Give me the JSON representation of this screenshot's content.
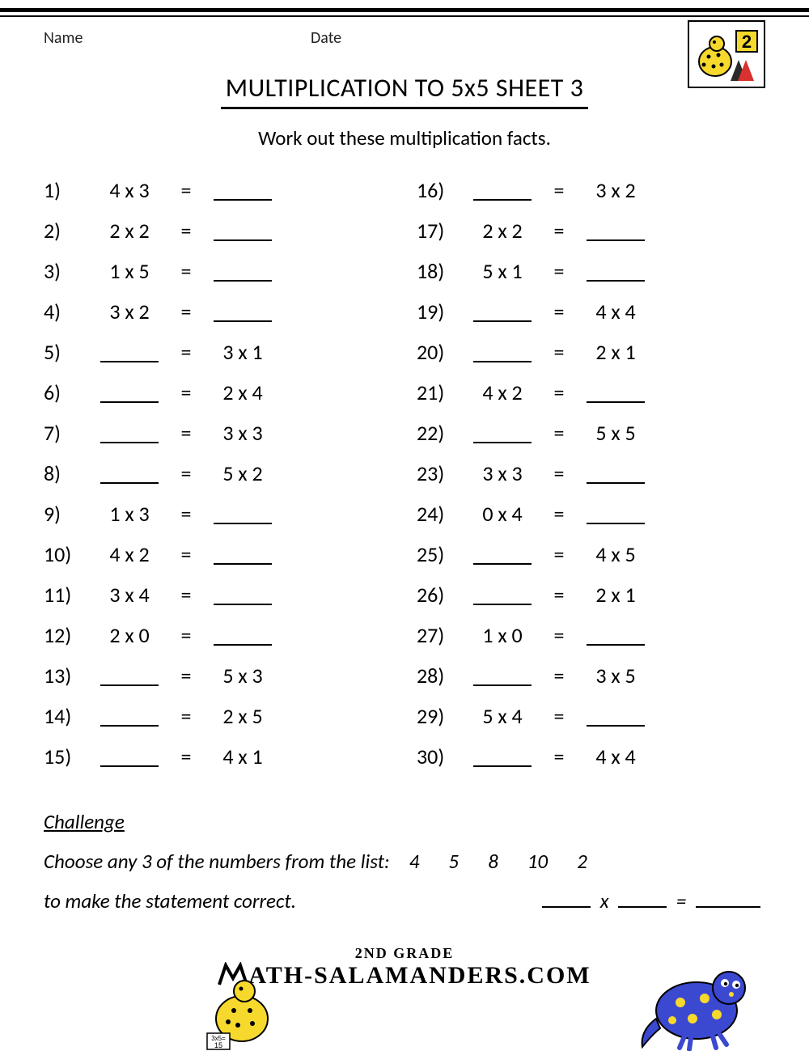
{
  "meta": {
    "name_label": "Name",
    "date_label": "Date"
  },
  "title": "MULTIPLICATION TO 5x5 SHEET 3",
  "instructions": "Work out these multiplication facts.",
  "grade_badge": "2",
  "columns": [
    [
      {
        "n": "1)",
        "left": "4 x 3",
        "right": ""
      },
      {
        "n": "2)",
        "left": "2 x 2",
        "right": ""
      },
      {
        "n": "3)",
        "left": "1 x 5",
        "right": ""
      },
      {
        "n": "4)",
        "left": "3 x 2",
        "right": ""
      },
      {
        "n": "5)",
        "left": "",
        "right": "3 x 1"
      },
      {
        "n": "6)",
        "left": "",
        "right": "2 x 4"
      },
      {
        "n": "7)",
        "left": "",
        "right": "3 x 3"
      },
      {
        "n": "8)",
        "left": "",
        "right": "5 x 2"
      },
      {
        "n": "9)",
        "left": "1 x 3",
        "right": ""
      },
      {
        "n": "10)",
        "left": "4 x 2",
        "right": ""
      },
      {
        "n": "11)",
        "left": "3 x 4",
        "right": ""
      },
      {
        "n": "12)",
        "left": "2 x 0",
        "right": ""
      },
      {
        "n": "13)",
        "left": "",
        "right": "5 x 3"
      },
      {
        "n": "14)",
        "left": "",
        "right": "2 x 5"
      },
      {
        "n": "15)",
        "left": "",
        "right": "4 x 1"
      }
    ],
    [
      {
        "n": "16)",
        "left": "",
        "right": "3 x 2"
      },
      {
        "n": "17)",
        "left": "2 x 2",
        "right": ""
      },
      {
        "n": "18)",
        "left": "5 x 1",
        "right": ""
      },
      {
        "n": "19)",
        "left": "",
        "right": "4 x 4"
      },
      {
        "n": "20)",
        "left": "",
        "right": "2 x 1"
      },
      {
        "n": "21)",
        "left": "4 x 2",
        "right": ""
      },
      {
        "n": "22)",
        "left": "",
        "right": "5 x 5"
      },
      {
        "n": "23)",
        "left": "3 x 3",
        "right": ""
      },
      {
        "n": "24)",
        "left": "0 x 4",
        "right": ""
      },
      {
        "n": "25)",
        "left": "",
        "right": "4 x 5"
      },
      {
        "n": "26)",
        "left": "",
        "right": "2 x 1"
      },
      {
        "n": "27)",
        "left": "1 x 0",
        "right": ""
      },
      {
        "n": "28)",
        "left": "",
        "right": "3 x 5"
      },
      {
        "n": "29)",
        "left": "5 x 4",
        "right": ""
      },
      {
        "n": "30)",
        "left": "",
        "right": "4 x 4"
      }
    ]
  ],
  "equals": "=",
  "challenge": {
    "title": "Challenge",
    "line1": "Choose any 3 of the numbers from the list:",
    "numbers": [
      "4",
      "5",
      "8",
      "10",
      "2"
    ],
    "line2": "to make the statement correct.",
    "op": "x",
    "eq": "="
  },
  "footer": {
    "grade_line": "2ND GRADE",
    "site_line": "ATH-SALAMANDERS.COM"
  },
  "colors": {
    "sal_body": "#3b49d1",
    "sal_spot": "#f7d92e",
    "badge_bg": "#f7d92e",
    "text": "#000000"
  }
}
